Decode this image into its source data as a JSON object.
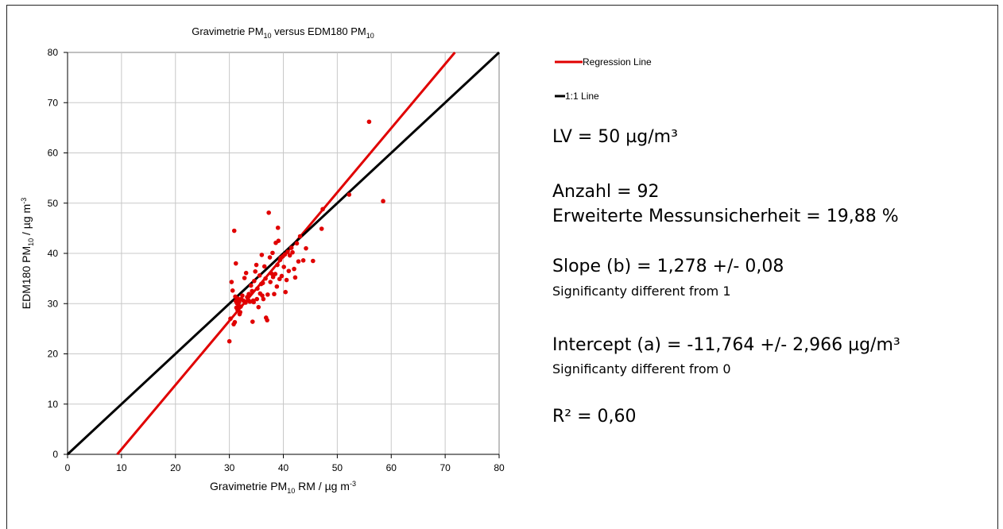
{
  "chart_data": {
    "type": "scatter",
    "title": "Gravimetrie PM10 versus EDM180 PM10",
    "xlabel": "Gravimetrie PM10  RM / µg m-3",
    "ylabel": "EDM180 PM10 /  µg m-3",
    "xlim": [
      0,
      80
    ],
    "ylim": [
      0,
      80
    ],
    "x_ticks": [
      0,
      10,
      20,
      30,
      40,
      50,
      60,
      70,
      80
    ],
    "y_ticks": [
      0,
      10,
      20,
      30,
      40,
      50,
      60,
      70,
      80
    ],
    "grid": true,
    "legend_position": "top-right",
    "series": [
      {
        "kind": "points",
        "color": "#e00000",
        "points": [
          [
            30.0,
            22.5
          ],
          [
            30.2,
            27.0
          ],
          [
            30.4,
            34.3
          ],
          [
            30.6,
            32.6
          ],
          [
            30.8,
            25.9
          ],
          [
            31.0,
            26.3
          ],
          [
            30.9,
            44.5
          ],
          [
            31.2,
            30.5
          ],
          [
            31.3,
            29.2
          ],
          [
            31.4,
            30.1
          ],
          [
            31.5,
            28.8
          ],
          [
            31.6,
            31.0
          ],
          [
            31.7,
            29.6
          ],
          [
            31.8,
            30.3
          ],
          [
            31.2,
            38.0
          ],
          [
            31.9,
            27.9
          ],
          [
            32.0,
            28.3
          ],
          [
            32.1,
            29.4
          ],
          [
            32.2,
            30.9
          ],
          [
            32.4,
            31.6
          ],
          [
            32.6,
            30.6
          ],
          [
            32.8,
            35.1
          ],
          [
            33.0,
            30.2
          ],
          [
            33.1,
            36.1
          ],
          [
            33.3,
            31.3
          ],
          [
            33.5,
            30.7
          ],
          [
            33.6,
            31.9
          ],
          [
            33.8,
            30.4
          ],
          [
            34.0,
            33.6
          ],
          [
            34.2,
            32.5
          ],
          [
            34.3,
            26.4
          ],
          [
            34.5,
            30.3
          ],
          [
            34.6,
            34.5
          ],
          [
            34.8,
            36.4
          ],
          [
            35.0,
            37.7
          ],
          [
            35.1,
            30.9
          ],
          [
            35.2,
            33.0
          ],
          [
            35.4,
            29.3
          ],
          [
            35.6,
            35.6
          ],
          [
            35.7,
            32.0
          ],
          [
            35.9,
            33.9
          ],
          [
            36.0,
            39.7
          ],
          [
            36.2,
            34.1
          ],
          [
            36.3,
            30.9
          ],
          [
            36.5,
            37.4
          ],
          [
            36.7,
            35.0
          ],
          [
            36.8,
            27.2
          ],
          [
            37.0,
            26.7
          ],
          [
            37.1,
            31.8
          ],
          [
            37.3,
            48.1
          ],
          [
            37.5,
            39.2
          ],
          [
            37.6,
            34.3
          ],
          [
            37.8,
            36.0
          ],
          [
            38.0,
            40.1
          ],
          [
            38.1,
            35.3
          ],
          [
            38.3,
            31.9
          ],
          [
            38.5,
            35.9
          ],
          [
            38.6,
            42.1
          ],
          [
            38.8,
            33.4
          ],
          [
            39.0,
            45.1
          ],
          [
            39.1,
            42.5
          ],
          [
            39.3,
            34.9
          ],
          [
            39.5,
            39.1
          ],
          [
            39.7,
            35.5
          ],
          [
            39.9,
            39.4
          ],
          [
            40.1,
            37.3
          ],
          [
            40.3,
            39.8
          ],
          [
            40.4,
            32.3
          ],
          [
            40.6,
            34.7
          ],
          [
            40.8,
            40.3
          ],
          [
            41.0,
            36.5
          ],
          [
            41.2,
            39.6
          ],
          [
            41.5,
            41.1
          ],
          [
            41.7,
            40.2
          ],
          [
            42.0,
            36.9
          ],
          [
            42.2,
            35.2
          ],
          [
            42.5,
            42.0
          ],
          [
            42.8,
            38.4
          ],
          [
            43.1,
            43.4
          ],
          [
            43.7,
            38.6
          ],
          [
            44.2,
            41.0
          ],
          [
            45.5,
            38.5
          ],
          [
            47.1,
            44.9
          ],
          [
            47.3,
            48.8
          ],
          [
            52.2,
            51.7
          ],
          [
            55.9,
            66.2
          ],
          [
            58.5,
            50.4
          ],
          [
            34.4,
            30.6
          ],
          [
            36.1,
            31.6
          ],
          [
            38.9,
            37.7
          ],
          [
            39.4,
            38.7
          ],
          [
            31.1,
            31.4
          ]
        ]
      },
      {
        "name": "Regression Line",
        "kind": "line",
        "color": "#e00000",
        "slope": 1.278,
        "intercept": -11.764
      },
      {
        "name": "1:1 Line",
        "kind": "line",
        "color": "#000000",
        "slope": 1.0,
        "intercept": 0.0
      }
    ]
  },
  "stats": {
    "lv": "LV = 50  µg/m³",
    "anzahl": "Anzahl    = 92",
    "unsicherheit": "Erweiterte Messunsicherheit = 19,88 %",
    "slope": "Slope (b) = 1,278 +/- 0,08",
    "slope_note": "Significanty different from 1",
    "intercept": "Intercept (a) = -11,764 +/- 2,966 µg/m³",
    "intercept_note": "Significanty different from 0",
    "r2": "R² = 0,60"
  }
}
